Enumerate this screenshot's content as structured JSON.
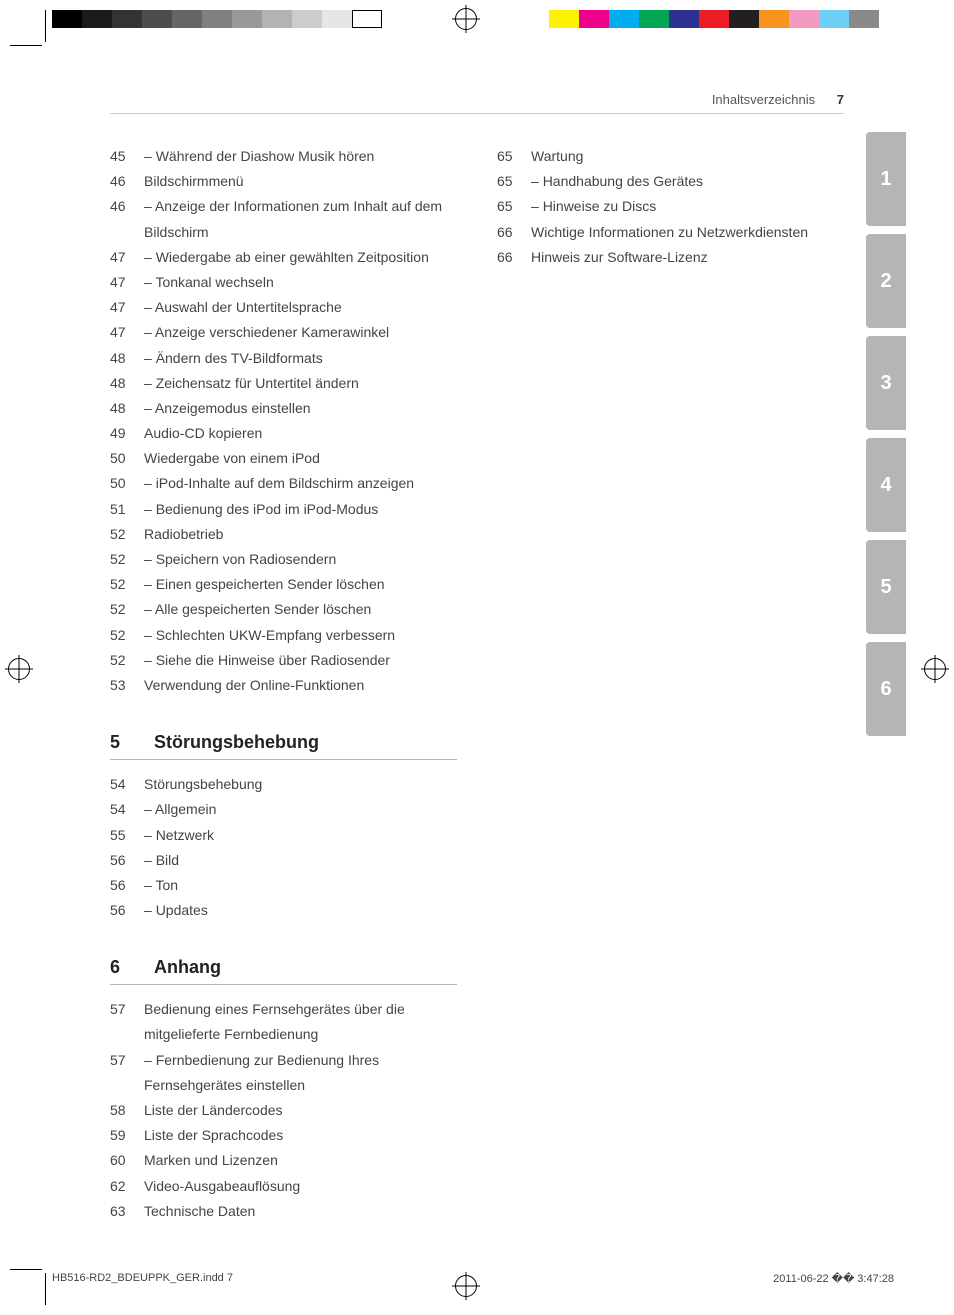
{
  "print": {
    "greyscale": [
      "#000000",
      "#1a1a1a",
      "#333333",
      "#4d4d4d",
      "#666666",
      "#808080",
      "#999999",
      "#b3b3b3",
      "#cccccc",
      "#e6e6e6",
      "#ffffff"
    ],
    "colors": [
      "#fff200",
      "#ec008c",
      "#00aeef",
      "#00a651",
      "#2e3192",
      "#ed1c24",
      "#231f20",
      "#f7941d",
      "#f49ac1",
      "#6dcff6",
      "#8a8a8a"
    ]
  },
  "header": {
    "title": "Inhaltsverzeichnis",
    "page": "7"
  },
  "tabs": [
    "1",
    "2",
    "3",
    "4",
    "5",
    "6"
  ],
  "col1": [
    {
      "p": "45",
      "t": "Während der Diashow Musik hören",
      "sub": true
    },
    {
      "p": "46",
      "t": "Bildschirmmenü",
      "sub": false
    },
    {
      "p": "46",
      "t": "Anzeige der Informationen zum Inhalt auf dem Bildschirm",
      "sub": true
    },
    {
      "p": "47",
      "t": "Wiedergabe ab einer gewählten Zeitposition",
      "sub": true
    },
    {
      "p": "47",
      "t": "Tonkanal wechseln",
      "sub": true
    },
    {
      "p": "47",
      "t": "Auswahl der Untertitelsprache",
      "sub": true
    },
    {
      "p": "47",
      "t": "Anzeige verschiedener Kamerawinkel",
      "sub": true
    },
    {
      "p": "48",
      "t": "Ändern des TV-Bildformats",
      "sub": true
    },
    {
      "p": "48",
      "t": "Zeichensatz für Untertitel ändern",
      "sub": true
    },
    {
      "p": "48",
      "t": "Anzeigemodus einstellen",
      "sub": true
    },
    {
      "p": "49",
      "t": "Audio-CD kopieren",
      "sub": false
    },
    {
      "p": "50",
      "t": "Wiedergabe von einem iPod",
      "sub": false
    },
    {
      "p": "50",
      "t": "iPod-Inhalte auf dem Bildschirm anzeigen",
      "sub": true
    },
    {
      "p": "51",
      "t": "Bedienung des iPod im iPod-Modus",
      "sub": true
    },
    {
      "p": "52",
      "t": "Radiobetrieb",
      "sub": false
    },
    {
      "p": "52",
      "t": "Speichern von Radiosendern",
      "sub": true
    },
    {
      "p": "52",
      "t": "Einen gespeicherten Sender löschen",
      "sub": true
    },
    {
      "p": "52",
      "t": "Alle gespeicherten Sender löschen",
      "sub": true
    },
    {
      "p": "52",
      "t": "Schlechten UKW-Empfang verbessern",
      "sub": true
    },
    {
      "p": "52",
      "t": "Siehe die Hinweise über Radiosender",
      "sub": true
    },
    {
      "p": "53",
      "t": "Verwendung der Online-Funktionen",
      "sub": false
    }
  ],
  "sec5": {
    "num": "5",
    "title": "Störungsbehebung"
  },
  "col1b": [
    {
      "p": "54",
      "t": "Störungsbehebung",
      "sub": false
    },
    {
      "p": "54",
      "t": "Allgemein",
      "sub": true
    },
    {
      "p": "55",
      "t": "Netzwerk",
      "sub": true
    },
    {
      "p": "56",
      "t": "Bild",
      "sub": true
    },
    {
      "p": "56",
      "t": "Ton",
      "sub": true
    },
    {
      "p": "56",
      "t": "Updates",
      "sub": true
    }
  ],
  "sec6": {
    "num": "6",
    "title": "Anhang"
  },
  "col1c": [
    {
      "p": "57",
      "t": "Bedienung eines Fernsehgerätes über die mitgelieferte Fernbedienung",
      "sub": false
    },
    {
      "p": "57",
      "t": "Fernbedienung zur Bedienung Ihres Fernsehgerätes einstellen",
      "sub": true
    },
    {
      "p": "58",
      "t": "Liste der Ländercodes",
      "sub": false
    },
    {
      "p": "59",
      "t": "Liste der Sprachcodes",
      "sub": false
    },
    {
      "p": "60",
      "t": "Marken und Lizenzen",
      "sub": false
    },
    {
      "p": "62",
      "t": "Video-Ausgabeauflösung",
      "sub": false
    },
    {
      "p": "63",
      "t": "Technische Daten",
      "sub": false
    }
  ],
  "col2": [
    {
      "p": "65",
      "t": "Wartung",
      "sub": false
    },
    {
      "p": "65",
      "t": "Handhabung des Gerätes",
      "sub": true
    },
    {
      "p": "65",
      "t": "Hinweise zu Discs",
      "sub": true
    },
    {
      "p": "66",
      "t": "Wichtige Informationen zu Netzwerkdiensten",
      "sub": false
    },
    {
      "p": "66",
      "t": "Hinweis zur Software-Lizenz",
      "sub": false
    }
  ],
  "footer": {
    "left": "HB516-RD2_BDEUPPK_GER.indd   7",
    "right": "2011-06-22   �� 3:47:28"
  }
}
